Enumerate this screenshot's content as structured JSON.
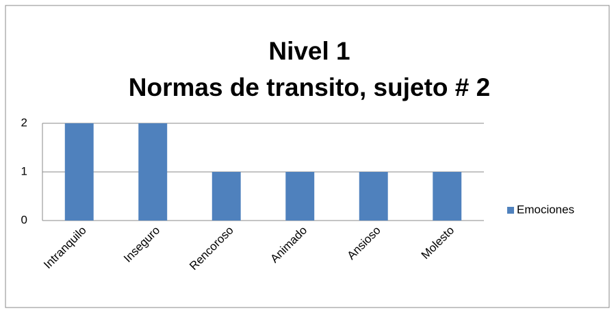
{
  "chart_data": {
    "type": "bar",
    "title": "Nivel 1",
    "subtitle": "Normas de transito, sujeto # 2",
    "categories": [
      "Intranquilo",
      "Inseguro",
      "Rencoroso",
      "Animado",
      "Ansioso",
      "Molesto"
    ],
    "series": [
      {
        "name": "Emociones",
        "color": "#4f81bd",
        "values": [
          2,
          2,
          1,
          1,
          1,
          1
        ]
      }
    ],
    "ylim": [
      0,
      2
    ],
    "yticks": [
      0,
      1,
      2
    ],
    "grid": true,
    "legend": "right"
  }
}
